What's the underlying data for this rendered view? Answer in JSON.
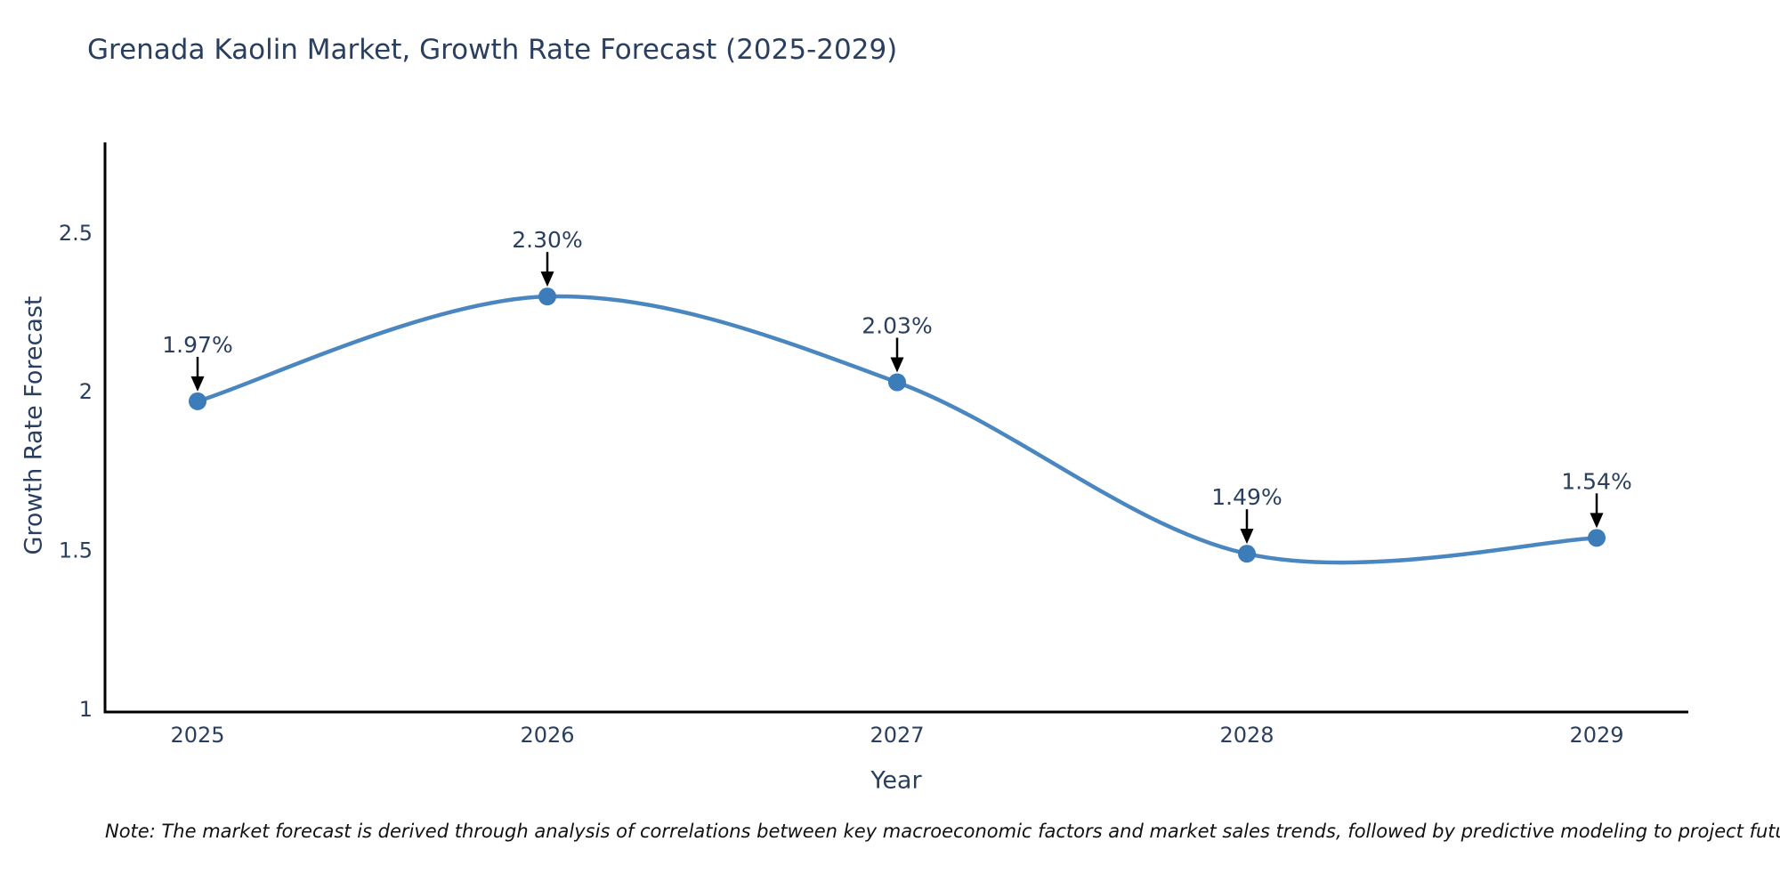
{
  "title": "Grenada Kaolin Market, Growth Rate Forecast (2025-2029)",
  "note": "Note: The market forecast is derived through analysis of correlations between key macroeconomic factors and market sales trends, followed by predictive modeling to project future sales",
  "chart_data": {
    "type": "line",
    "title": "Grenada Kaolin Market, Growth Rate Forecast (2025-2029)",
    "xlabel": "Year",
    "ylabel": "Growth Rate Forecast",
    "x": [
      2025,
      2026,
      2027,
      2028,
      2029
    ],
    "series": [
      {
        "name": "Growth Rate Forecast",
        "values": [
          1.97,
          2.3,
          2.03,
          1.49,
          1.54
        ]
      }
    ],
    "point_labels": [
      "1.97%",
      "2.30%",
      "2.03%",
      "1.49%",
      "1.54%"
    ],
    "xtick_labels": [
      "2025",
      "2026",
      "2027",
      "2028",
      "2029"
    ],
    "yticks": [
      1,
      1.5,
      2,
      2.5
    ],
    "ytick_labels": [
      "1",
      "1.5",
      "2",
      "2.5"
    ],
    "ylim": [
      1,
      2.79
    ],
    "line_shape": "spline",
    "grid": false,
    "legend": false,
    "annotations": "value labels with downward arrows above each point",
    "colors": {
      "line": "#4a86bf",
      "marker": "#3c7cb8",
      "axis": "#000000",
      "chart_text": "#2a3f5f",
      "arrow": "#000000",
      "note_text": "#111111",
      "background": "#ffffff"
    }
  }
}
